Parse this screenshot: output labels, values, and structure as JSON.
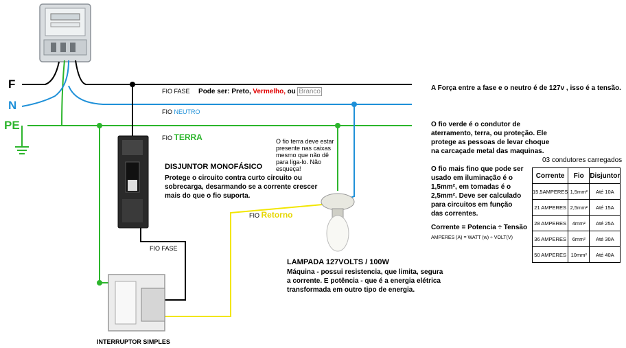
{
  "wires": {
    "fase": {
      "label": "F",
      "color": "#000000"
    },
    "neutro": {
      "label": "N",
      "color": "#1e90d8"
    },
    "terra": {
      "label": "PE",
      "color": "#2cb52c"
    },
    "retorno": {
      "color": "#f2e600"
    }
  },
  "labels": {
    "fio_fase_prefix": "FIO FASE",
    "pode_ser": "Pode ser: Preto,",
    "vermelho": "Vermelho,",
    "ou": "ou",
    "branco": "Branco",
    "fio_neutro_prefix": "FIO",
    "fio_neutro_word": "NEUTRO",
    "fio_terra_prefix": "FIO",
    "fio_terra_word": "TERRA",
    "fio_retorno_prefix": "FIO",
    "fio_retorno_word": "Retorno",
    "fio_fase_2": "FIO FASE",
    "disjuntor_title": "DISJUNTOR MONOFÁSICO",
    "disjuntor_desc": "Protege o circuito contra curto circuito ou sobrecarga, desarmando se a corrente crescer mais do que o fio suporta.",
    "terra_note": "O fio terra deve estar presente nas caixas mesmo que não dê para liga-lo. Não esqueça!",
    "lampada_title": "LAMPADA 127VOLTS  /  100W",
    "lampada_desc": "Máquina - possui resistencia, que limita, segura a corrente. E potência - que é a energia elétrica transformada em outro tipo de energia.",
    "interruptor": "INTERRUPTOR SIMPLES"
  },
  "notes": {
    "forca": "A Força entre a fase e o neutro é de 127v , isso é a tensão.",
    "verde": "O fio verde é o condutor de aterramento, terra, ou proteção. Ele protege as pessoas de levar choque na carcaçade metal das maquinas.",
    "fino": "O fio mais fino que pode ser usado em iluminação é o 1,5mm², em tomadas é o 2,5mm². Deve ser calculado para circuitos em função das correntes.",
    "formula": "Corrente =  Potencia ÷ Tensão",
    "formula_units": "AMPERES (A) =  WATT (w)  ÷  VOLT(V)"
  },
  "table": {
    "title": "03 condutores carregados",
    "headers": [
      "Corrente",
      "Fio",
      "Disjuntor"
    ],
    "rows": [
      [
        "15,5AMPERES",
        "1,5mm²",
        "Até 10A"
      ],
      [
        "21 AMPERES",
        "2,5mm²",
        "Até 15A"
      ],
      [
        "28 AMPERES",
        "4mm²",
        "Até 25A"
      ],
      [
        "36 AMPERES",
        "6mm²",
        "Até 30A"
      ],
      [
        "50 AMPERES",
        "10mm²",
        "Até 40A"
      ]
    ]
  }
}
